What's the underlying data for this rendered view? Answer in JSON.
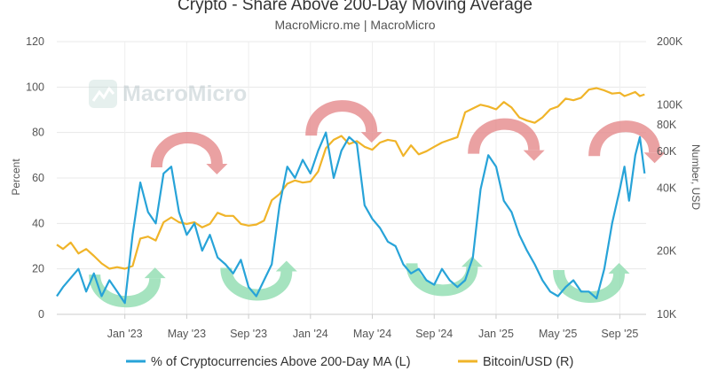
{
  "chart_data": {
    "type": "line",
    "title": "Crypto - Share Above 200-Day Moving Average",
    "subtitle": "MacroMicro.me | MacroMicro",
    "watermark": "MacroMicro",
    "x_tick_labels": [
      "Jan '23",
      "May '23",
      "Sep '23",
      "Jan '24",
      "May '24",
      "Sep '24",
      "Jan '25",
      "May '25",
      "Sep '25"
    ],
    "x_tick_months": [
      12,
      16,
      20,
      24,
      28,
      32,
      36,
      40,
      44
    ],
    "x_range_months": [
      7.6,
      45.7
    ],
    "ylabel_left": "Percent",
    "ylabel_right": "Number, USD",
    "ylim_left": [
      0,
      120
    ],
    "left_ticks": [
      "0",
      "20",
      "40",
      "60",
      "80",
      "100",
      "120"
    ],
    "right_axis_scale": "log",
    "ylim_right": [
      10000,
      200000
    ],
    "right_ticks": [
      {
        "label": "10K",
        "value": 10000
      },
      {
        "label": "20K",
        "value": 20000
      },
      {
        "label": "40K",
        "value": 40000
      },
      {
        "label": "60K",
        "value": 60000
      },
      {
        "label": "80K",
        "value": 80000
      },
      {
        "label": "100K",
        "value": 100000
      },
      {
        "label": "200K",
        "value": 200000
      }
    ],
    "series": [
      {
        "name": "% of Cryptocurrencies Above 200-Day MA (L)",
        "axis": "left",
        "color": "#27a3d8",
        "x_months": [
          7.6,
          8.0,
          8.5,
          9.0,
          9.5,
          10.0,
          10.5,
          11.0,
          11.5,
          12.0,
          12.5,
          13.0,
          13.5,
          14.0,
          14.5,
          15.0,
          15.5,
          16.0,
          16.5,
          17.0,
          17.5,
          18.0,
          18.5,
          19.0,
          19.5,
          20.0,
          20.5,
          21.0,
          21.5,
          22.0,
          22.5,
          23.0,
          23.5,
          24.0,
          24.5,
          25.0,
          25.5,
          26.0,
          26.5,
          27.0,
          27.5,
          28.0,
          28.5,
          29.0,
          29.5,
          30.0,
          30.5,
          31.0,
          31.5,
          32.0,
          32.5,
          33.0,
          33.5,
          34.0,
          34.5,
          35.0,
          35.5,
          36.0,
          36.5,
          37.0,
          37.5,
          38.0,
          38.5,
          39.0,
          39.5,
          40.0,
          40.5,
          41.0,
          41.5,
          42.0,
          42.5,
          43.0,
          43.5,
          44.0,
          44.3,
          44.6,
          45.0,
          45.3,
          45.6
        ],
        "values": [
          8,
          12,
          16,
          20,
          10,
          18,
          8,
          15,
          10,
          5,
          35,
          58,
          45,
          40,
          62,
          65,
          45,
          35,
          40,
          28,
          35,
          25,
          22,
          18,
          24,
          12,
          8,
          15,
          22,
          48,
          65,
          60,
          68,
          62,
          72,
          80,
          60,
          72,
          78,
          75,
          48,
          42,
          38,
          32,
          30,
          22,
          18,
          20,
          15,
          13,
          20,
          15,
          12,
          15,
          25,
          55,
          70,
          65,
          50,
          45,
          35,
          28,
          22,
          15,
          10,
          8,
          12,
          15,
          10,
          10,
          7,
          20,
          40,
          55,
          65,
          50,
          70,
          78,
          62
        ]
      },
      {
        "name": "Bitcoin/USD (R)",
        "axis": "right",
        "color": "#f0b429",
        "x_months": [
          7.6,
          8.0,
          8.5,
          9.0,
          9.5,
          10.0,
          10.5,
          11.0,
          11.5,
          12.0,
          12.5,
          13.0,
          13.5,
          14.0,
          14.5,
          15.0,
          15.5,
          16.0,
          16.5,
          17.0,
          17.5,
          18.0,
          18.5,
          19.0,
          19.5,
          20.0,
          20.5,
          21.0,
          21.5,
          22.0,
          22.5,
          23.0,
          23.5,
          24.0,
          24.5,
          25.0,
          25.5,
          26.0,
          26.5,
          27.0,
          27.5,
          28.0,
          28.5,
          29.0,
          29.5,
          30.0,
          30.5,
          31.0,
          31.5,
          32.0,
          32.5,
          33.0,
          33.5,
          34.0,
          34.5,
          35.0,
          35.5,
          36.0,
          36.5,
          37.0,
          37.5,
          38.0,
          38.5,
          39.0,
          39.5,
          40.0,
          40.5,
          41.0,
          41.5,
          42.0,
          42.5,
          43.0,
          43.5,
          44.0,
          44.3,
          44.6,
          45.0,
          45.3,
          45.6
        ],
        "values": [
          21500,
          20500,
          22000,
          19500,
          20500,
          19000,
          17500,
          16500,
          16800,
          16500,
          17000,
          23000,
          23500,
          22500,
          27500,
          29000,
          27500,
          27000,
          27500,
          26000,
          27000,
          30500,
          29500,
          29500,
          27000,
          26500,
          26800,
          28000,
          35000,
          37500,
          42000,
          43500,
          42500,
          43000,
          48000,
          62000,
          68000,
          71000,
          65000,
          67000,
          63000,
          61000,
          66000,
          68000,
          67000,
          57000,
          64000,
          58000,
          60000,
          63000,
          66000,
          68000,
          70000,
          92000,
          96000,
          100000,
          98000,
          95000,
          103000,
          97000,
          87000,
          84000,
          82000,
          87000,
          95000,
          98000,
          107000,
          105000,
          108000,
          118000,
          120000,
          117000,
          113000,
          114000,
          110000,
          112000,
          115000,
          110000,
          112000
        ]
      }
    ],
    "annotations": [
      {
        "type": "arrow",
        "direction": "down",
        "color": "red",
        "x_months": 16.0,
        "left_value": 67
      },
      {
        "type": "arrow",
        "direction": "down",
        "color": "red",
        "x_months": 26.0,
        "left_value": 81
      },
      {
        "type": "arrow",
        "direction": "down",
        "color": "red",
        "x_months": 36.5,
        "left_value": 73
      },
      {
        "type": "arrow",
        "direction": "down",
        "color": "red",
        "x_months": 44.3,
        "left_value": 72
      },
      {
        "type": "arrow",
        "direction": "up",
        "color": "green",
        "x_months": 12.0,
        "left_value": 5
      },
      {
        "type": "arrow",
        "direction": "up",
        "color": "green",
        "x_months": 20.5,
        "left_value": 8
      },
      {
        "type": "arrow",
        "direction": "up",
        "color": "green",
        "x_months": 32.5,
        "left_value": 10
      },
      {
        "type": "arrow",
        "direction": "up",
        "color": "green",
        "x_months": 42.0,
        "left_value": 7
      }
    ],
    "legend_position": "bottom",
    "grid": true
  }
}
